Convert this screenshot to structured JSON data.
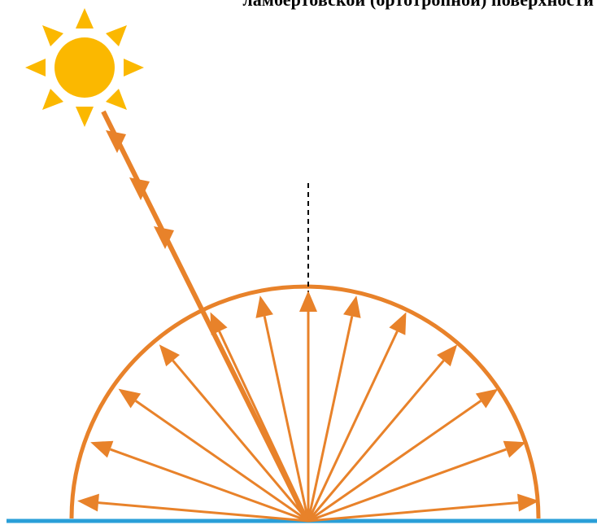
{
  "caption": "ламбертовской (ортотропной) поверхности",
  "colors": {
    "sun": "#fbb800",
    "rays": "#e8822a",
    "surface": "#2a9fd8",
    "normal": "#000000",
    "background": "#ffffff"
  },
  "icons": {
    "sun": "sun-icon"
  },
  "reflection": {
    "reflected_ray_angles_deg": [
      5,
      20,
      35,
      50,
      65,
      78,
      90,
      102,
      115,
      130,
      145,
      160,
      175
    ]
  }
}
